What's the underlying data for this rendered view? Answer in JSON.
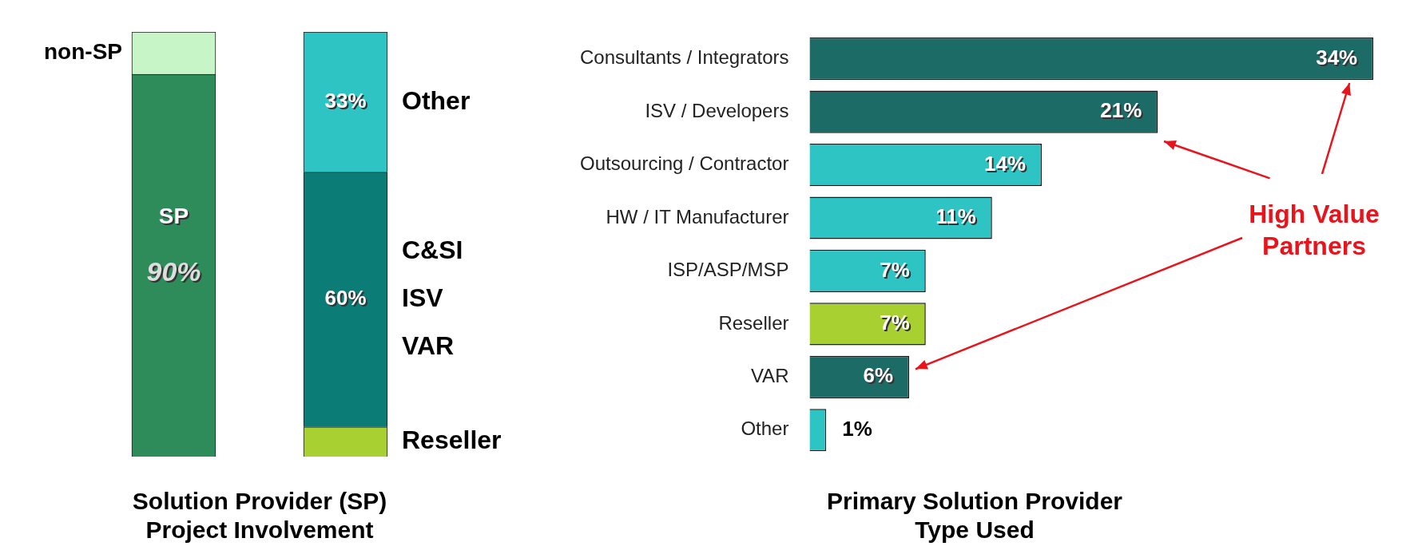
{
  "chart_data": [
    {
      "type": "bar",
      "title": "Solution Provider (SP)\nProject Involvement",
      "categories": [
        null,
        null
      ],
      "stacked": true,
      "ylim": [
        0,
        100
      ],
      "tick_labels": false,
      "grid": false,
      "legend": false,
      "series": [
        {
          "name": "SP",
          "color": "#2e8b5a",
          "values": [
            90,
            null
          ],
          "value_labels": [
            "90%",
            null
          ]
        },
        {
          "name": "non-SP",
          "color": "#c8f5c8",
          "values": [
            10,
            null
          ],
          "value_labels": [
            null,
            null
          ]
        },
        {
          "name": "Reseller",
          "color": "#a8d030",
          "values": [
            null,
            7
          ],
          "value_labels": [
            null,
            null
          ]
        },
        {
          "name": "C&SI\nISV\nVAR",
          "color": "#0b7c76",
          "values": [
            null,
            60
          ],
          "value_labels": [
            null,
            "60%"
          ]
        },
        {
          "name": "Other",
          "color": "#2ec4c4",
          "values": [
            null,
            33
          ],
          "value_labels": [
            null,
            "33%"
          ]
        }
      ]
    },
    {
      "type": "bar",
      "orientation": "horizontal",
      "title": "Primary Solution Provider\nType Used",
      "categories": [
        "Consultants / Integrators",
        "ISV / Developers",
        "Outsourcing / Contractor",
        "HW / IT Manufacturer",
        "ISP/ASP/MSP",
        "Reseller",
        "VAR",
        "Other"
      ],
      "values": [
        34,
        21,
        14,
        11,
        7,
        7,
        6,
        1
      ],
      "colors": [
        "#1d6b66",
        "#1d6b66",
        "#2ec4c4",
        "#2ec4c4",
        "#2ec4c4",
        "#a8d030",
        "#1d6b66",
        "#2ec4c4"
      ],
      "value_labels": [
        "34%",
        "21%",
        "14%",
        "11%",
        "7%",
        "7%",
        "6%",
        "1%"
      ],
      "tick_labels": "y",
      "grid": false,
      "legend": false,
      "annotations": [
        "High Value Partners"
      ]
    }
  ]
}
